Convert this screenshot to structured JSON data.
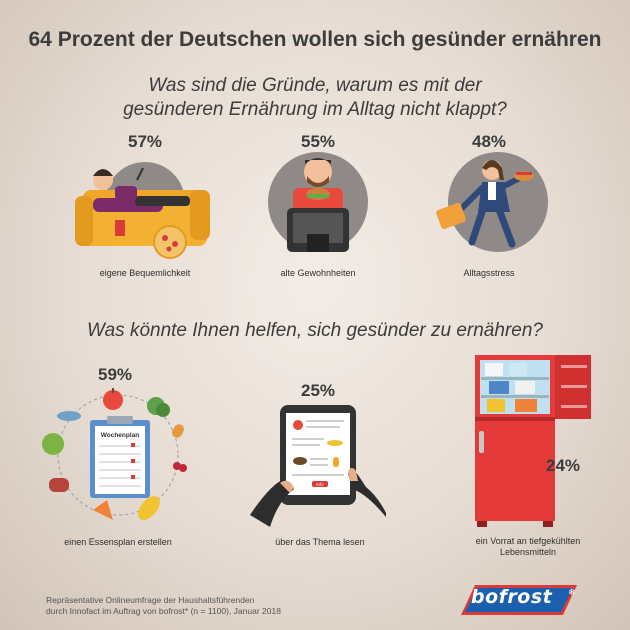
{
  "title": "64 Prozent der Deutschen wollen sich gesünder ernähren",
  "question1": {
    "line1": "Was sind die Gründe, warum es mit der",
    "line2": "gesünderen Ernährung im Alltag nicht klappt?"
  },
  "question2": "Was könnte Ihnen helfen, sich gesünder zu ernähren?",
  "reasons": [
    {
      "value": "57%",
      "label": "eigene Bequemlichkeit"
    },
    {
      "value": "55%",
      "label": "alte Gewohnheiten"
    },
    {
      "value": "48%",
      "label": "Alltagsstress"
    }
  ],
  "helpers": [
    {
      "value": "59%",
      "label": "einen Essensplan erstellen"
    },
    {
      "value": "25%",
      "label": "über das Thema lesen"
    },
    {
      "value": "24%",
      "label_line1": "ein Vorrat an tiefgekühlten",
      "label_line2": "Lebensmitteln"
    }
  ],
  "plan_heading": "Wochenplan",
  "tablet_button": "Info",
  "footnote": {
    "line1": "Repräsentative Onlineumfrage der Haushaltsführenden",
    "line2": "durch Innofact im Auftrag von bofrost* (n = 1100), Januar 2018"
  },
  "logo": "bofrost",
  "colors": {
    "background": "#e6dcd3",
    "circle": "#8f8a87",
    "accent_red": "#d93a3a",
    "logo_blue": "#1b5fae"
  },
  "chart_data": [
    {
      "type": "bar",
      "title": "Was sind die Gründe, warum es mit der gesünderen Ernährung im Alltag nicht klappt?",
      "categories": [
        "eigene Bequemlichkeit",
        "alte Gewohnheiten",
        "Alltagsstress"
      ],
      "values": [
        57,
        55,
        48
      ]
    },
    {
      "type": "bar",
      "title": "Was könnte Ihnen helfen, sich gesünder zu ernähren?",
      "categories": [
        "einen Essensplan erstellen",
        "über das Thema lesen",
        "ein Vorrat an tiefgekühlten Lebensmitteln"
      ],
      "values": [
        59,
        25,
        24
      ]
    }
  ]
}
